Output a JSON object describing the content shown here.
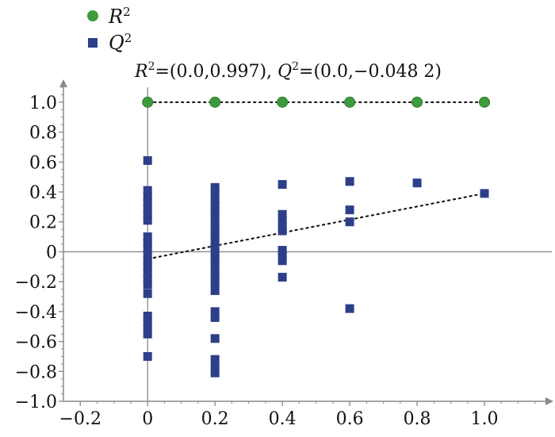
{
  "chart_data": {
    "type": "scatter",
    "xlim": [
      -0.25,
      1.2
    ],
    "ylim": [
      -1.0,
      1.1
    ],
    "x_ticks": [
      "−0.2",
      "0",
      "0.2",
      "0.4",
      "0.6",
      "0.8",
      "1.0"
    ],
    "x_tick_values": [
      -0.2,
      0,
      0.2,
      0.4,
      0.6,
      0.8,
      1.0
    ],
    "y_ticks": [
      "1.0",
      "0.8",
      "0.6",
      "0.4",
      "0.2",
      "0",
      "−0.2",
      "−0.4",
      "−0.6",
      "−0.8",
      "−1.0"
    ],
    "y_tick_values": [
      1.0,
      0.8,
      0.6,
      0.4,
      0.2,
      0,
      -0.2,
      -0.4,
      -0.6,
      -0.8,
      -1.0
    ],
    "grid": false,
    "legend": {
      "position": "top-left",
      "entries": [
        {
          "label": "R",
          "sup": "2",
          "marker": "circle",
          "color": "#3d9a3d"
        },
        {
          "label": "Q",
          "sup": "2",
          "marker": "square",
          "color": "#2e3f8a"
        }
      ]
    },
    "annotation": {
      "r_label": "R",
      "r_sup": "2",
      "r_value": "=(0.0,0.997), ",
      "q_label": "Q",
      "q_sup": "2",
      "q_value": "=(0.0,−0.048 2)"
    },
    "series": [
      {
        "name": "R2",
        "marker": "circle",
        "color": "#3d9a3d",
        "points": [
          {
            "x": 0,
            "y": 1.0
          },
          {
            "x": 0.2,
            "y": 1.0
          },
          {
            "x": 0.4,
            "y": 1.0
          },
          {
            "x": 0.6,
            "y": 1.0
          },
          {
            "x": 0.8,
            "y": 1.0
          },
          {
            "x": 1.0,
            "y": 1.0
          }
        ],
        "regression": {
          "from": [
            0,
            1.0
          ],
          "to": [
            1.0,
            1.0
          ]
        }
      },
      {
        "name": "Q2",
        "marker": "square",
        "color": "#2e3f8a",
        "points": [
          {
            "x": 0,
            "y": 0.61
          },
          {
            "x": 0,
            "y": 0.41
          },
          {
            "x": 0,
            "y": 0.37
          },
          {
            "x": 0,
            "y": 0.33
          },
          {
            "x": 0,
            "y": 0.29
          },
          {
            "x": 0,
            "y": 0.25
          },
          {
            "x": 0,
            "y": 0.21
          },
          {
            "x": 0,
            "y": 0.1
          },
          {
            "x": 0,
            "y": 0.06
          },
          {
            "x": 0,
            "y": 0.02
          },
          {
            "x": 0,
            "y": -0.02
          },
          {
            "x": 0,
            "y": -0.06
          },
          {
            "x": 0,
            "y": -0.1
          },
          {
            "x": 0,
            "y": -0.14
          },
          {
            "x": 0,
            "y": -0.18
          },
          {
            "x": 0,
            "y": -0.22
          },
          {
            "x": 0,
            "y": -0.28
          },
          {
            "x": 0,
            "y": -0.43
          },
          {
            "x": 0,
            "y": -0.47
          },
          {
            "x": 0,
            "y": -0.51
          },
          {
            "x": 0,
            "y": -0.55
          },
          {
            "x": 0,
            "y": -0.7
          },
          {
            "x": 0.2,
            "y": 0.43
          },
          {
            "x": 0.2,
            "y": 0.39
          },
          {
            "x": 0.2,
            "y": 0.35
          },
          {
            "x": 0.2,
            "y": 0.31
          },
          {
            "x": 0.2,
            "y": 0.27
          },
          {
            "x": 0.2,
            "y": 0.23
          },
          {
            "x": 0.2,
            "y": 0.19
          },
          {
            "x": 0.2,
            "y": 0.15
          },
          {
            "x": 0.2,
            "y": 0.11
          },
          {
            "x": 0.2,
            "y": 0.07
          },
          {
            "x": 0.2,
            "y": 0.03
          },
          {
            "x": 0.2,
            "y": -0.01
          },
          {
            "x": 0.2,
            "y": -0.05
          },
          {
            "x": 0.2,
            "y": -0.09
          },
          {
            "x": 0.2,
            "y": -0.13
          },
          {
            "x": 0.2,
            "y": -0.17
          },
          {
            "x": 0.2,
            "y": -0.21
          },
          {
            "x": 0.2,
            "y": -0.26
          },
          {
            "x": 0.2,
            "y": -0.4
          },
          {
            "x": 0.2,
            "y": -0.44
          },
          {
            "x": 0.2,
            "y": -0.58
          },
          {
            "x": 0.2,
            "y": -0.72
          },
          {
            "x": 0.2,
            "y": -0.77
          },
          {
            "x": 0.2,
            "y": -0.81
          },
          {
            "x": 0.4,
            "y": 0.45
          },
          {
            "x": 0.4,
            "y": 0.25
          },
          {
            "x": 0.4,
            "y": 0.21
          },
          {
            "x": 0.4,
            "y": 0.17
          },
          {
            "x": 0.4,
            "y": 0.14
          },
          {
            "x": 0.4,
            "y": 0.01
          },
          {
            "x": 0.4,
            "y": -0.03
          },
          {
            "x": 0.4,
            "y": -0.06
          },
          {
            "x": 0.4,
            "y": -0.17
          },
          {
            "x": 0.6,
            "y": 0.47
          },
          {
            "x": 0.6,
            "y": 0.28
          },
          {
            "x": 0.6,
            "y": 0.2
          },
          {
            "x": 0.6,
            "y": -0.38
          },
          {
            "x": 0.8,
            "y": 0.46
          },
          {
            "x": 1.0,
            "y": 0.39
          }
        ],
        "regression": {
          "from": [
            0,
            -0.048
          ],
          "to": [
            1.0,
            0.39
          ]
        }
      }
    ]
  }
}
